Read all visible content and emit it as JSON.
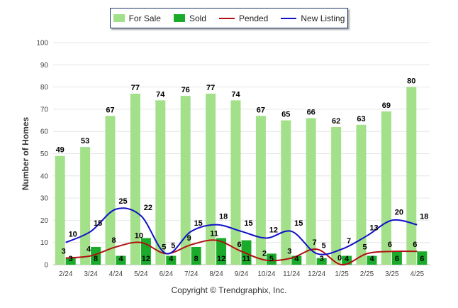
{
  "legend": {
    "items": [
      {
        "label": "For Sale",
        "color": "#a3e08a",
        "kind": "bar"
      },
      {
        "label": "Sold",
        "color": "#1aab2a",
        "kind": "bar"
      },
      {
        "label": "Pended",
        "color": "#b01010",
        "kind": "line"
      },
      {
        "label": "New Listing",
        "color": "#1010c8",
        "kind": "line"
      }
    ]
  },
  "copyright": "Copyright © Trendgraphix, Inc.",
  "chart_data": {
    "type": "bar",
    "title": "",
    "xlabel": "",
    "ylabel": "Number of Homes",
    "ylim": [
      0,
      100
    ],
    "yticks": [
      0,
      10,
      20,
      30,
      40,
      50,
      60,
      70,
      80,
      90,
      100
    ],
    "grid": true,
    "legend_position": "top",
    "categories": [
      "2/24",
      "3/24",
      "4/24",
      "5/24",
      "6/24",
      "7/24",
      "8/24",
      "9/24",
      "10/24",
      "11/24",
      "12/24",
      "1/25",
      "2/25",
      "3/25",
      "4/25"
    ],
    "series": [
      {
        "name": "For Sale",
        "kind": "bar",
        "color": "#a3e08a",
        "values": [
          49,
          53,
          67,
          77,
          74,
          76,
          77,
          74,
          67,
          65,
          66,
          62,
          63,
          69,
          80
        ]
      },
      {
        "name": "Sold",
        "kind": "bar",
        "color": "#1aab2a",
        "values": [
          3,
          8,
          4,
          12,
          4,
          8,
          12,
          11,
          5,
          4,
          3,
          4,
          4,
          6,
          6
        ]
      },
      {
        "name": "Pended",
        "kind": "line",
        "color": "#b01010",
        "values": [
          3,
          4,
          8,
          10,
          5,
          9,
          11,
          6,
          2,
          3,
          7,
          0,
          5,
          6,
          6
        ]
      },
      {
        "name": "New Listing",
        "kind": "line",
        "color": "#1010c8",
        "values": [
          10,
          15,
          25,
          22,
          5,
          15,
          18,
          15,
          12,
          15,
          5,
          7,
          13,
          20,
          18
        ]
      }
    ]
  }
}
